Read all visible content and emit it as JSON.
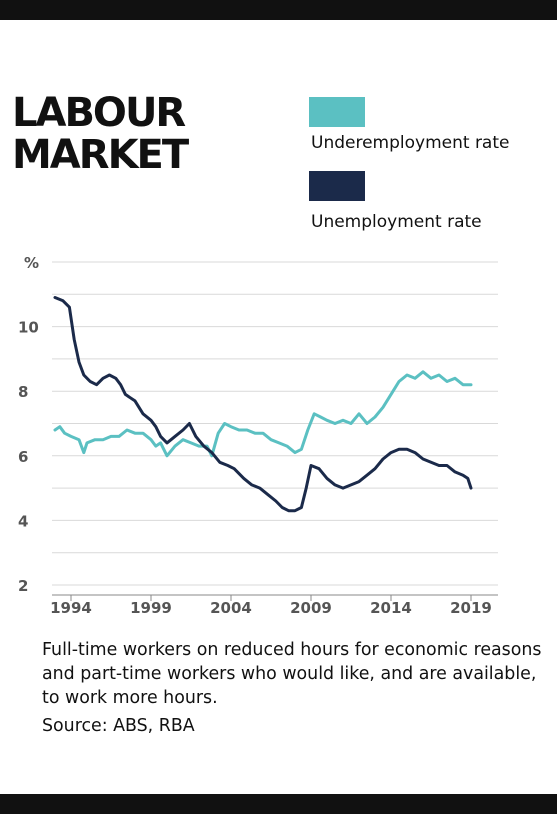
{
  "chart_data": {
    "type": "line",
    "title": "LABOUR\nMARKET",
    "ylabel": "%",
    "ylim": [
      2,
      12
    ],
    "yticks": [
      2,
      4,
      6,
      8,
      10
    ],
    "xlim": [
      1993,
      2020
    ],
    "xticks": [
      "1994",
      "1999",
      "2004",
      "2009",
      "2014",
      "2019"
    ],
    "grid": true,
    "legend_position": "top-right",
    "series": [
      {
        "name": "Underemployment rate",
        "color": "#5bc0c2",
        "x": [
          1993.0,
          1993.3,
          1993.6,
          1994.0,
          1994.5,
          1994.8,
          1995.0,
          1995.5,
          1996.0,
          1996.5,
          1997.0,
          1997.5,
          1998.0,
          1998.5,
          1999.0,
          1999.3,
          1999.6,
          2000.0,
          2000.5,
          2001.0,
          2001.5,
          2002.0,
          2002.5,
          2002.8,
          2003.2,
          2003.6,
          2004.0,
          2004.5,
          2005.0,
          2005.5,
          2006.0,
          2006.5,
          2007.0,
          2007.5,
          2008.0,
          2008.4,
          2008.8,
          2009.2,
          2009.6,
          2010.0,
          2010.5,
          2011.0,
          2011.5,
          2012.0,
          2012.5,
          2013.0,
          2013.5,
          2014.0,
          2014.5,
          2015.0,
          2015.5,
          2016.0,
          2016.5,
          2017.0,
          2017.5,
          2018.0,
          2018.5,
          2019.0
        ],
        "values": [
          6.8,
          6.9,
          6.7,
          6.6,
          6.5,
          6.1,
          6.4,
          6.5,
          6.5,
          6.6,
          6.6,
          6.8,
          6.7,
          6.7,
          6.5,
          6.3,
          6.4,
          6.0,
          6.3,
          6.5,
          6.4,
          6.3,
          6.3,
          6.0,
          6.7,
          7.0,
          6.9,
          6.8,
          6.8,
          6.7,
          6.7,
          6.5,
          6.4,
          6.3,
          6.1,
          6.2,
          6.8,
          7.3,
          7.2,
          7.1,
          7.0,
          7.1,
          7.0,
          7.3,
          7.0,
          7.2,
          7.5,
          7.9,
          8.3,
          8.5,
          8.4,
          8.6,
          8.4,
          8.5,
          8.3,
          8.4,
          8.2,
          8.2
        ]
      },
      {
        "name": "Unemployment rate",
        "color": "#1b2a4a",
        "x": [
          1993.0,
          1993.5,
          1993.9,
          1994.2,
          1994.5,
          1994.8,
          1995.2,
          1995.6,
          1996.0,
          1996.4,
          1996.8,
          1997.1,
          1997.4,
          1997.7,
          1998.0,
          1998.5,
          1999.0,
          1999.3,
          1999.6,
          2000.0,
          2000.5,
          2001.0,
          2001.4,
          2001.8,
          2002.3,
          2002.8,
          2003.3,
          2003.8,
          2004.2,
          2004.8,
          2005.3,
          2005.8,
          2006.3,
          2006.8,
          2007.2,
          2007.6,
          2008.0,
          2008.4,
          2008.7,
          2009.0,
          2009.5,
          2010.0,
          2010.5,
          2011.0,
          2011.5,
          2012.0,
          2012.5,
          2013.0,
          2013.5,
          2014.0,
          2014.5,
          2015.0,
          2015.5,
          2016.0,
          2016.5,
          2017.0,
          2017.5,
          2018.0,
          2018.5,
          2018.8,
          2019.0
        ],
        "values": [
          10.9,
          10.8,
          10.6,
          9.6,
          8.9,
          8.5,
          8.3,
          8.2,
          8.4,
          8.5,
          8.4,
          8.2,
          7.9,
          7.8,
          7.7,
          7.3,
          7.1,
          6.9,
          6.6,
          6.4,
          6.6,
          6.8,
          7.0,
          6.6,
          6.3,
          6.1,
          5.8,
          5.7,
          5.6,
          5.3,
          5.1,
          5.0,
          4.8,
          4.6,
          4.4,
          4.3,
          4.3,
          4.4,
          5.0,
          5.7,
          5.6,
          5.3,
          5.1,
          5.0,
          5.1,
          5.2,
          5.4,
          5.6,
          5.9,
          6.1,
          6.2,
          6.2,
          6.1,
          5.9,
          5.8,
          5.7,
          5.7,
          5.5,
          5.4,
          5.3,
          5.0
        ]
      }
    ]
  },
  "caption": "Full-time workers on reduced hours for economic reasons and part-time workers who would like, and are available, to work more hours.",
  "source": "Source: ABS, RBA"
}
